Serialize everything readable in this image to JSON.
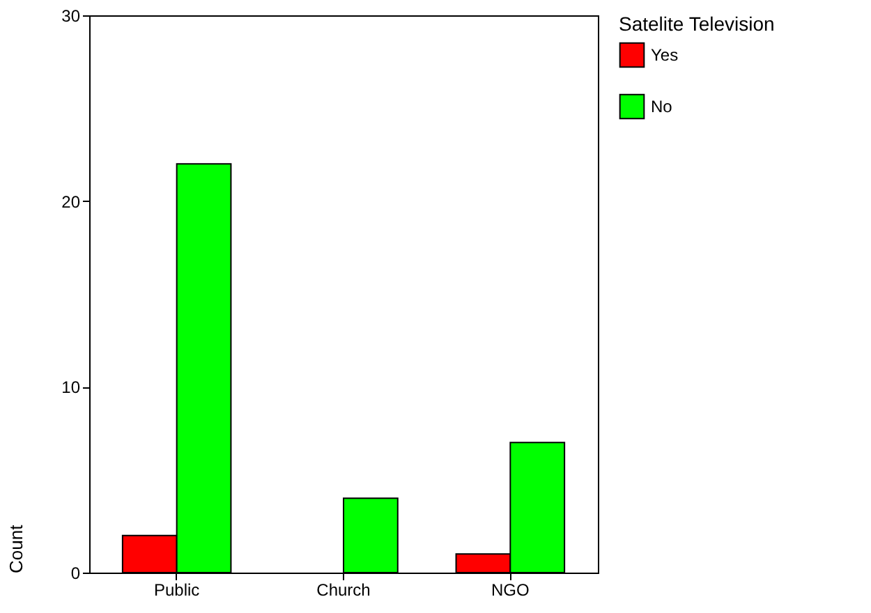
{
  "chart_data": {
    "type": "bar",
    "categories": [
      "Public",
      "Church",
      "NGO"
    ],
    "series": [
      {
        "name": "Yes",
        "color": "#ff0000",
        "values": [
          2,
          0,
          1
        ]
      },
      {
        "name": "No",
        "color": "#00ff00",
        "values": [
          22,
          4,
          7
        ]
      }
    ],
    "ylabel": "Count",
    "legend_title": "Satelite Television",
    "legend": "right",
    "ylim": [
      0,
      30
    ],
    "yticks": [
      0,
      10,
      20,
      30
    ],
    "grid": false
  }
}
